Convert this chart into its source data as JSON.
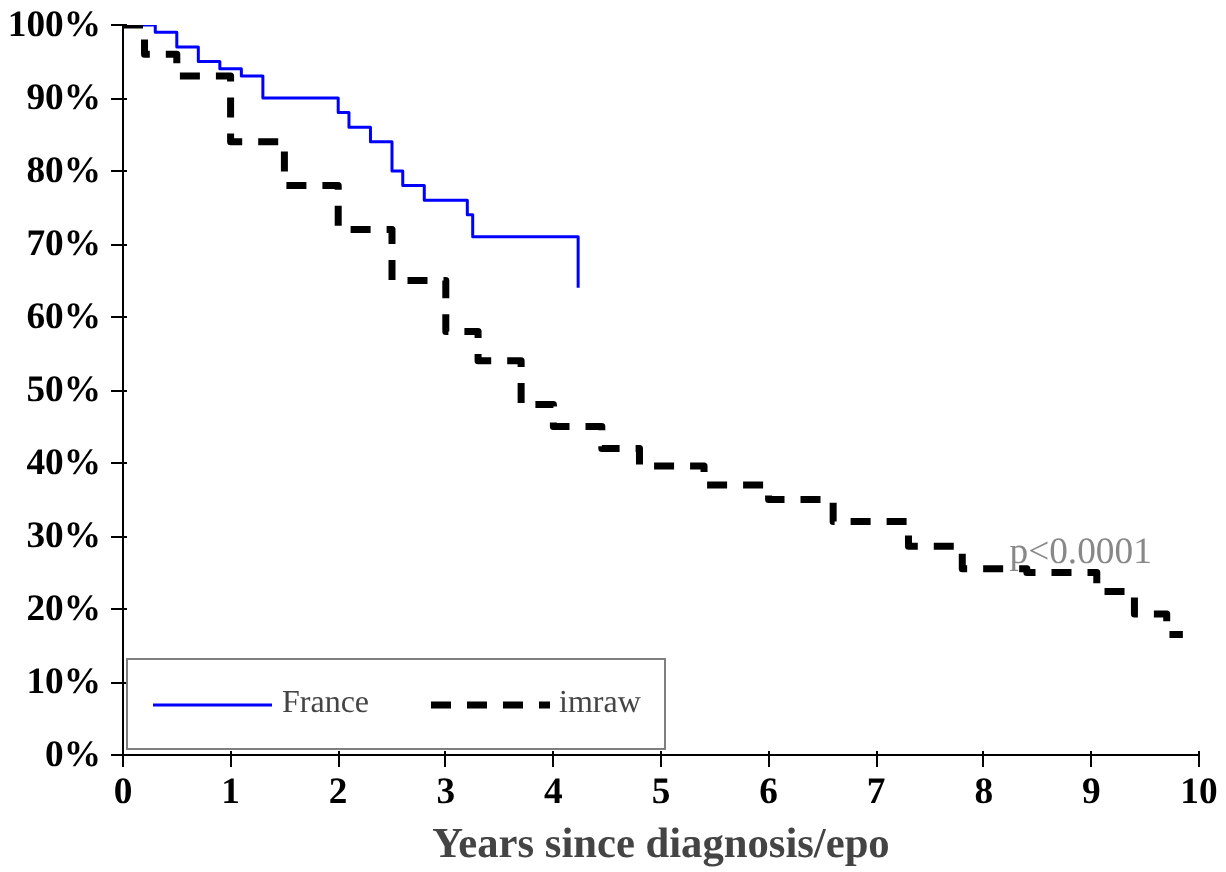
{
  "chart_data": {
    "type": "step",
    "xlabel": "Years since diagnosis/epo",
    "xlim": [
      0,
      10
    ],
    "ylim": [
      0,
      100
    ],
    "xticks": [
      0,
      1,
      2,
      3,
      4,
      5,
      6,
      7,
      8,
      9,
      10
    ],
    "yticks": [
      {
        "value": 0,
        "label": "0%"
      },
      {
        "value": 10,
        "label": "10%"
      },
      {
        "value": 20,
        "label": "20%"
      },
      {
        "value": 30,
        "label": "30%"
      },
      {
        "value": 40,
        "label": "40%"
      },
      {
        "value": 50,
        "label": "50%"
      },
      {
        "value": 60,
        "label": "60%"
      },
      {
        "value": 70,
        "label": "70%"
      },
      {
        "value": 80,
        "label": "80%"
      },
      {
        "value": 90,
        "label": "90%"
      },
      {
        "value": 100,
        "label": "100%"
      }
    ],
    "series": [
      {
        "name": "France",
        "color": "#0000ff",
        "line_style": "solid",
        "x": [
          0,
          0.3,
          0.5,
          0.7,
          0.9,
          1.1,
          1.3,
          2.0,
          2.1,
          2.3,
          2.5,
          2.6,
          2.8,
          3.2,
          3.25,
          4.23
        ],
        "values": [
          100,
          99,
          97,
          95,
          94,
          93,
          90,
          88,
          86,
          84,
          80,
          78,
          76,
          74,
          71,
          64
        ]
      },
      {
        "name": "imraw",
        "color": "#000000",
        "line_style": "dashed",
        "x": [
          0,
          0.2,
          0.5,
          1.0,
          1.5,
          2.0,
          2.5,
          3.0,
          3.3,
          3.7,
          4.0,
          4.45,
          4.8,
          5.4,
          6.0,
          6.6,
          7.1,
          7.3,
          7.8,
          8.4,
          9.05,
          9.4,
          9.7,
          9.85
        ],
        "values": [
          100,
          96,
          93,
          84,
          78,
          72,
          65,
          58,
          54,
          48,
          45,
          42,
          39.6,
          37,
          35,
          32,
          32,
          28.6,
          25.5,
          25,
          22.4,
          19.3,
          16.5,
          16.5
        ]
      }
    ],
    "annotations": [
      {
        "text": "p<0.0001",
        "x": 8.9,
        "y": 25
      }
    ],
    "legend": "bottom left",
    "grid": false
  }
}
